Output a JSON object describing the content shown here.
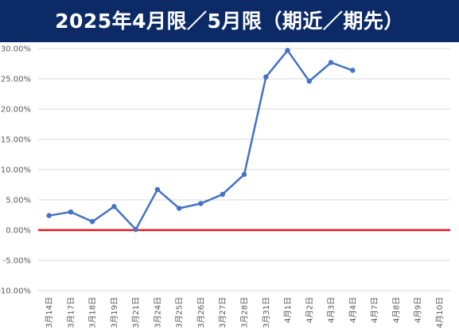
{
  "chart_data": {
    "type": "line",
    "title": "2025年4月限／5月限（期近／期先）",
    "xlabel": "",
    "ylabel": "",
    "categories": [
      "3月14日",
      "3月17日",
      "3月18日",
      "3月19日",
      "3月21日",
      "3月24日",
      "3月25日",
      "3月26日",
      "3月27日",
      "3月28日",
      "3月31日",
      "4月1日",
      "4月2日",
      "4月3日",
      "4月4日",
      "4月7日",
      "4月8日",
      "4月9日",
      "4月10日"
    ],
    "series": [
      {
        "values": [
          2.4,
          3.0,
          1.4,
          3.9,
          0.1,
          6.7,
          3.6,
          4.4,
          5.9,
          9.2,
          25.3,
          29.7,
          24.6,
          27.7,
          26.4,
          null,
          null,
          null,
          null
        ],
        "color": "#4472c4"
      }
    ],
    "ylim": [
      -10,
      30
    ],
    "yticks": [
      -10,
      -5,
      0,
      5,
      10,
      15,
      20,
      25,
      30
    ],
    "ytick_labels": [
      "-10.00%",
      "-5.00%",
      "0.00%",
      "5.00%",
      "10.00%",
      "15.00%",
      "20.00%",
      "25.00%",
      "30.00%"
    ],
    "zero_line_color": "#e8141b",
    "grid": true,
    "legend": "none"
  },
  "colors": {
    "title_background": "#0c2b66",
    "title_text": "#ffffff",
    "gridline": "#d9d9d9",
    "tick_text": "#595959"
  }
}
